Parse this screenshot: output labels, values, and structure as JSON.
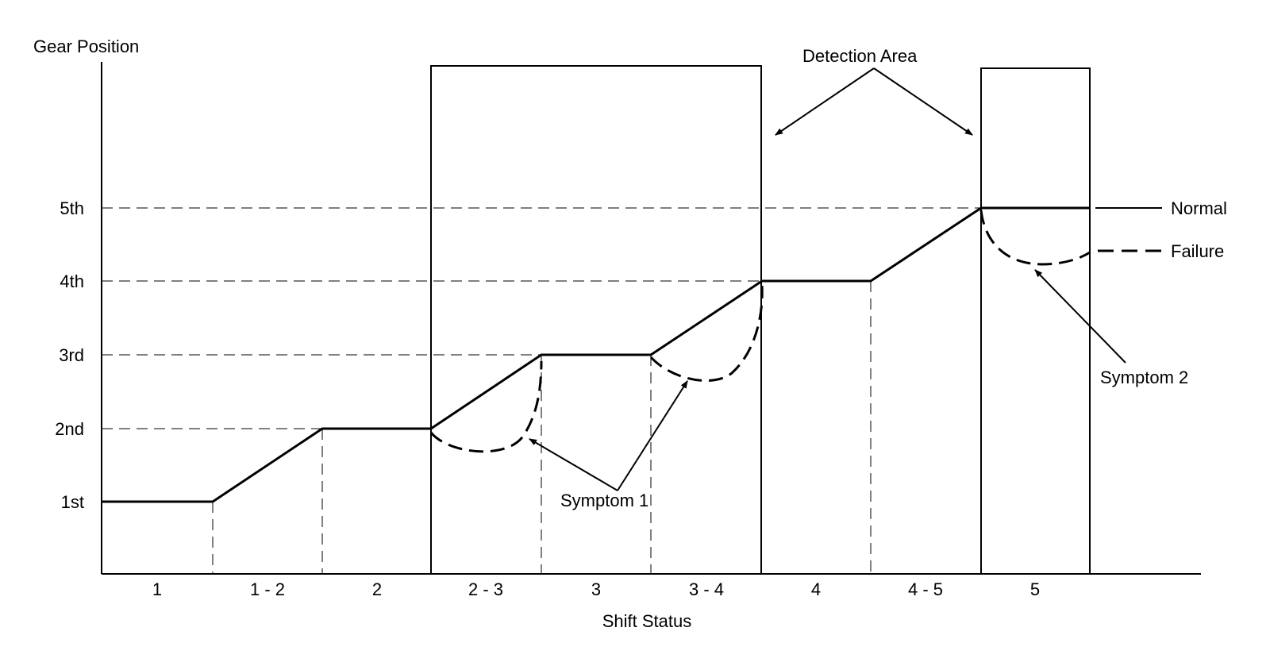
{
  "y_axis_title": "Gear Position",
  "x_axis_title": "Shift Status",
  "gear_labels": [
    "1st",
    "2nd",
    "3rd",
    "4th",
    "5th"
  ],
  "shift_labels": [
    "1",
    "1 - 2",
    "2",
    "2 - 3",
    "3",
    "3 - 4",
    "4",
    "4 - 5",
    "5"
  ],
  "annotations": {
    "detection_area": "Detection Area",
    "symptom_1": "Symptom 1",
    "symptom_2": "Symptom 2"
  },
  "legend": {
    "normal": "Normal",
    "failure": "Failure"
  }
}
